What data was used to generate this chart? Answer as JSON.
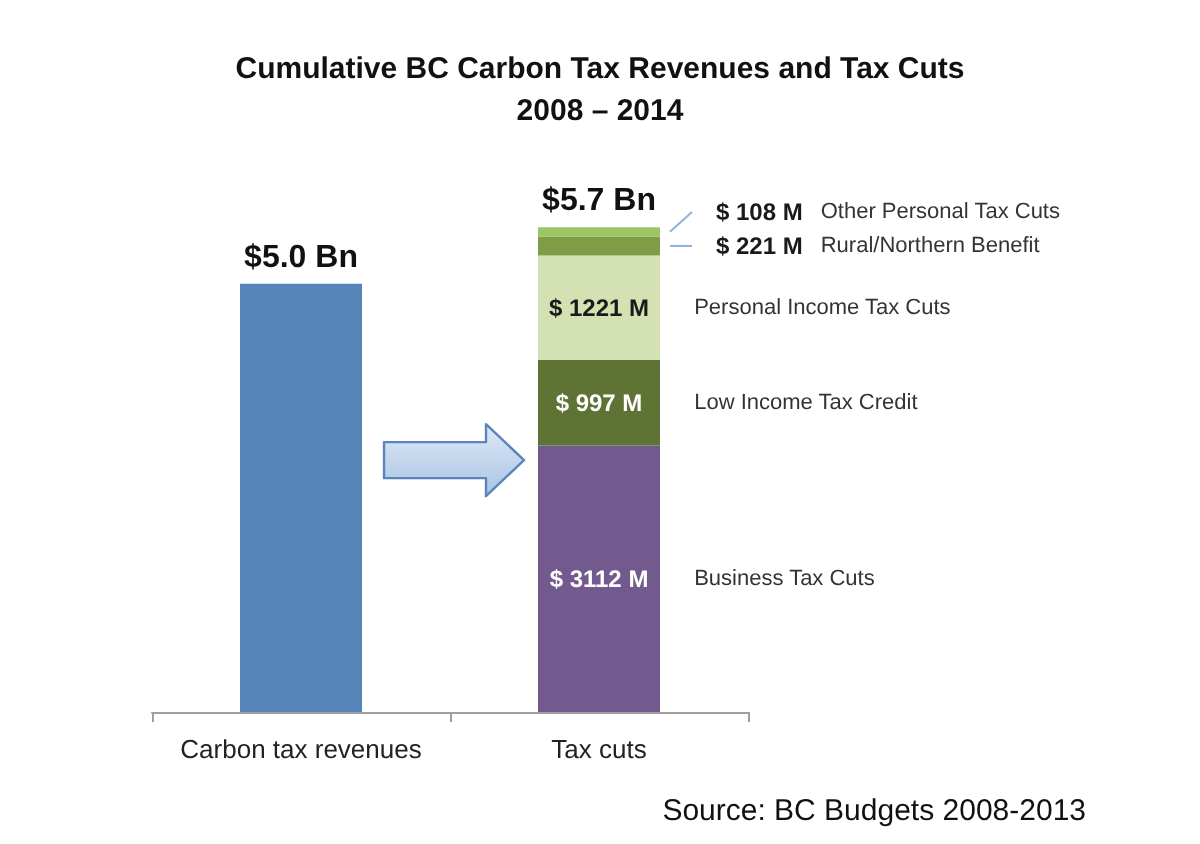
{
  "chart_data": {
    "type": "bar",
    "title": "Cumulative BC Carbon Tax Revenues and Tax Cuts",
    "subtitle": "2008 – 2014",
    "categories": [
      "Carbon tax revenues",
      "Tax cuts"
    ],
    "stacked": true,
    "series": [
      {
        "color": "#5585b8",
        "values": [
          5000,
          null
        ]
      },
      {
        "name": "Business Tax Cuts",
        "color": "#735a8e",
        "values": [
          null,
          3112
        ],
        "value_labels": [
          null,
          "$ 3112 M"
        ]
      },
      {
        "name": "Low Income Tax Credit",
        "color": "#5f7434",
        "values": [
          null,
          997
        ],
        "value_labels": [
          null,
          "$ 997 M"
        ]
      },
      {
        "name": "Personal Income Tax Cuts",
        "color": "#d4e1b2",
        "values": [
          null,
          1221
        ],
        "value_labels": [
          null,
          "$ 1221 M"
        ]
      },
      {
        "name": "Rural/Northern Benefit",
        "color": "#7f9c47",
        "values": [
          null,
          221
        ],
        "value_labels": [
          null,
          "$ 221 M"
        ]
      },
      {
        "name": "Other Personal Tax Cuts",
        "color": "#9cc565",
        "values": [
          null,
          108
        ],
        "value_labels": [
          null,
          "$ 108 M"
        ]
      }
    ],
    "legend": false,
    "grid": false,
    "annotations": [
      {
        "text": "$5.0 Bn",
        "x": "Carbon tax revenues",
        "y": 5000
      },
      {
        "text": "$5.7 Bn",
        "x": "Tax cuts",
        "y": 5659
      },
      "Source: BC Budgets 2008-2013"
    ]
  }
}
